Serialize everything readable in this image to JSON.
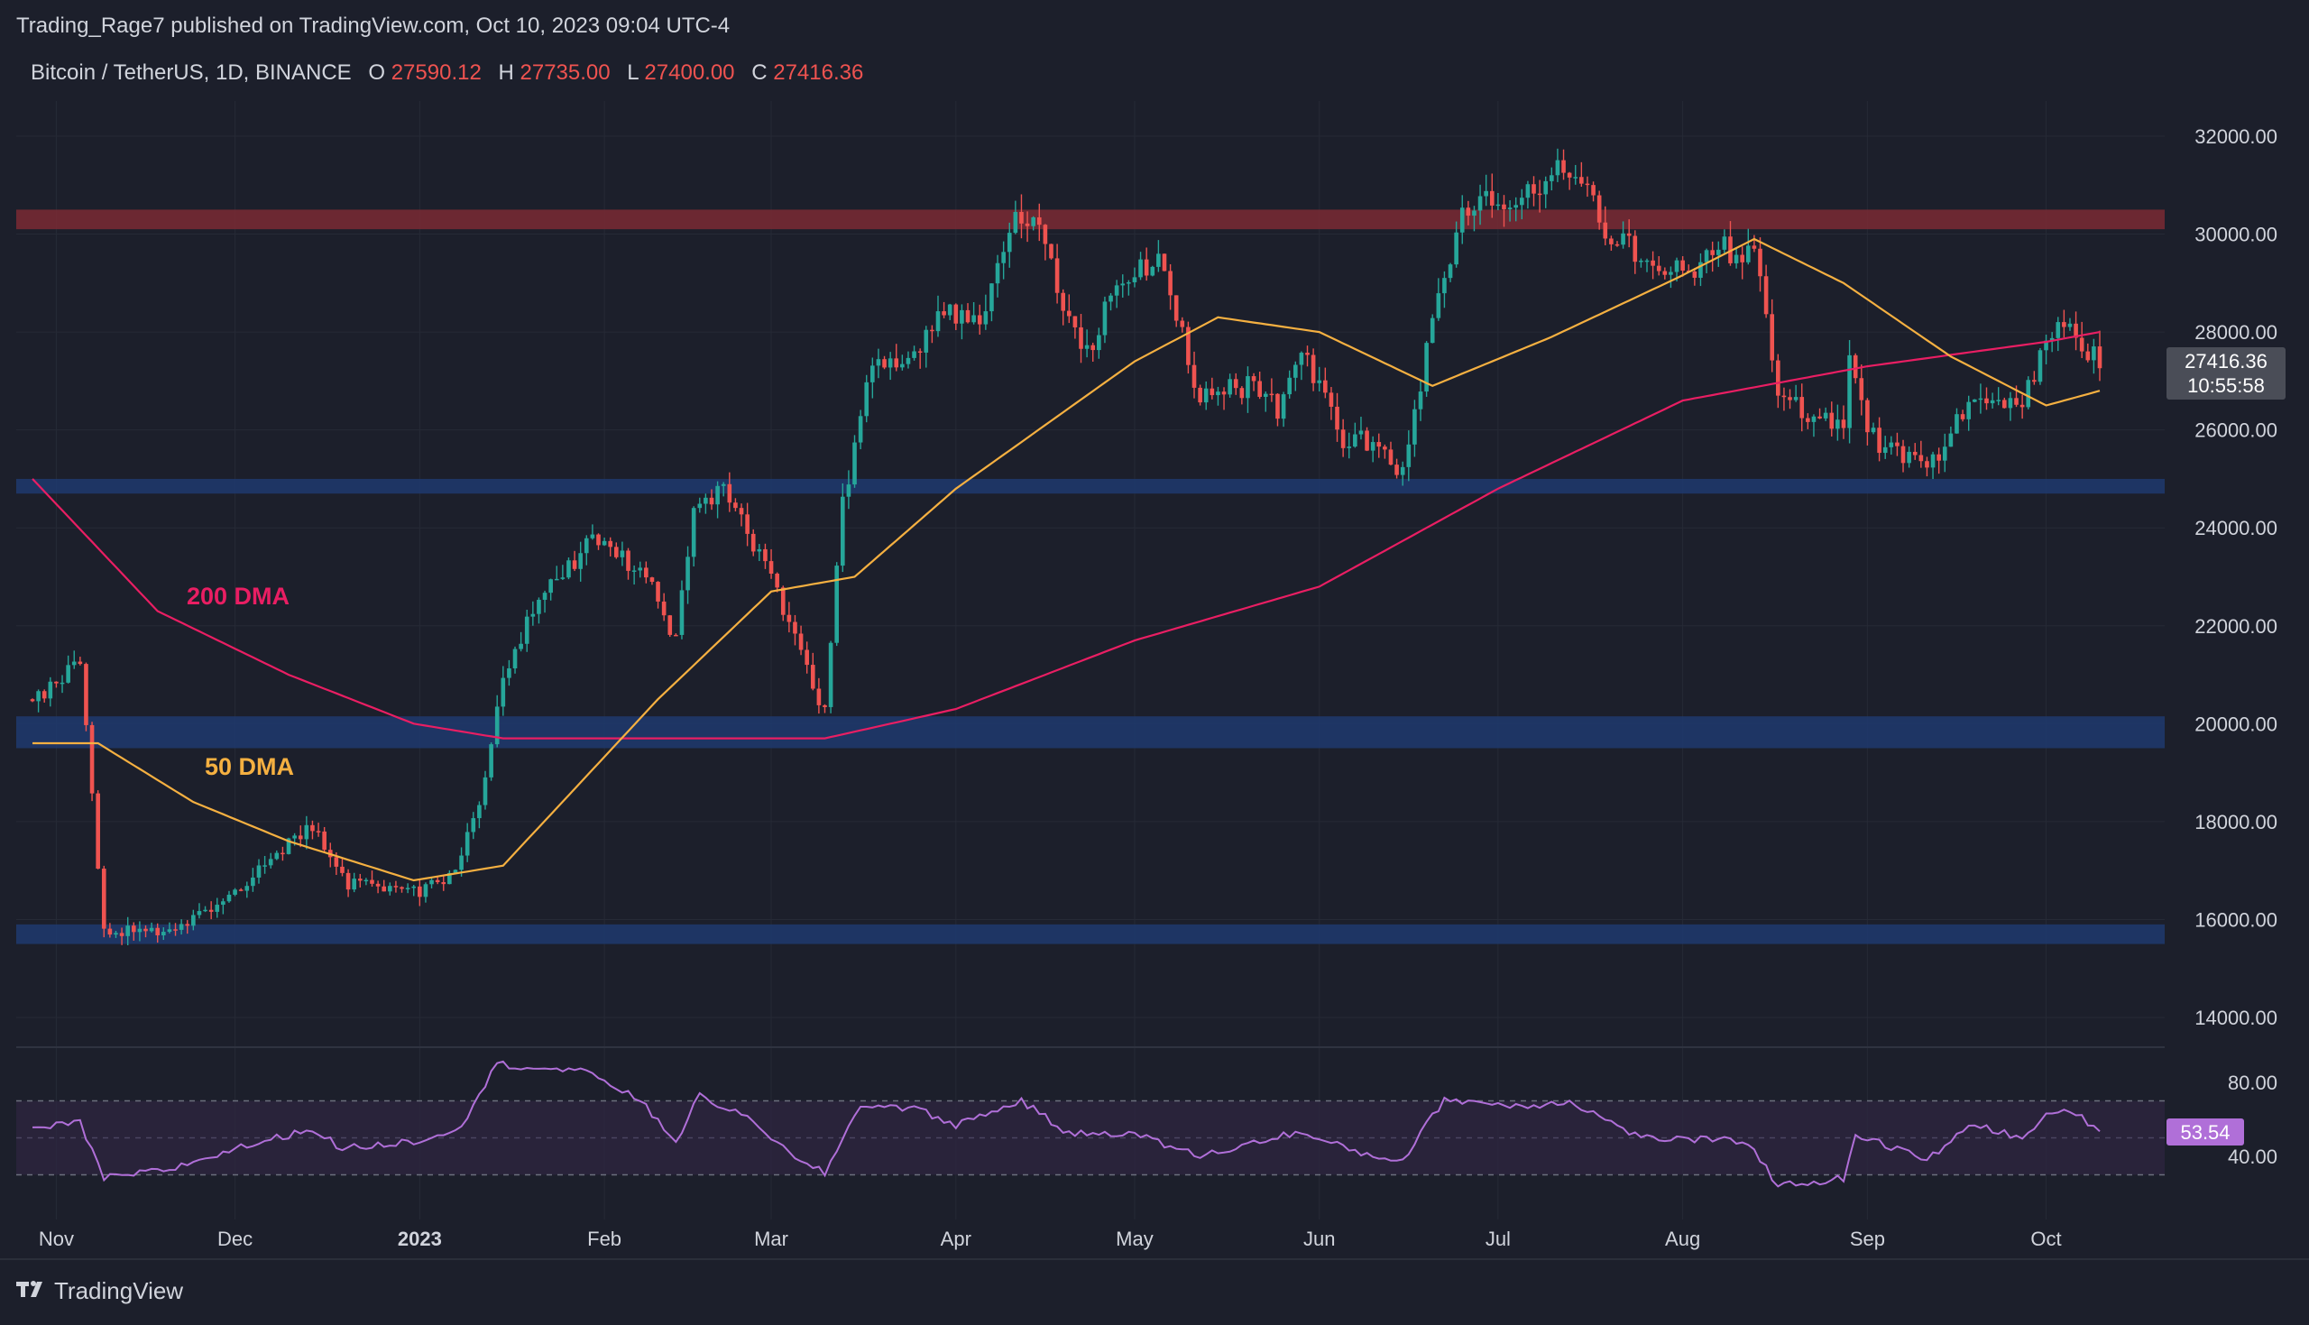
{
  "header": {
    "publisher": "Trading_Rage7 published on TradingView.com, Oct 10, 2023 09:04 UTC-4"
  },
  "symbol": {
    "name": "Bitcoin / TetherUS, 1D, BINANCE",
    "open_label": "O",
    "open_value": "27590.12",
    "high_label": "H",
    "high_value": "27735.00",
    "low_label": "L",
    "low_value": "27400.00",
    "close_label": "C",
    "close_value": "27416.36"
  },
  "price_badge": {
    "value": "27416.36",
    "countdown": "10:55:58"
  },
  "rsi_badge": {
    "value": "53.54"
  },
  "annotations": {
    "ma200_label": "200 DMA",
    "ma50_label": "50 DMA"
  },
  "footer": {
    "logo_text": "TradingView"
  },
  "colors": {
    "background": "#1c1f2b",
    "text": "#d1d4dc",
    "grid": "#262a36",
    "candle_up": "#26a69a",
    "candle_down": "#ef5350",
    "ma200": "#e91e63",
    "ma50": "#f5b041",
    "rsi_line": "#b06fd8",
    "rsi_band": "#2e2540",
    "resistance_zone": "#7a2a34",
    "support_zone": "#1f3a6e",
    "price_badge_bg": "#4a4d57",
    "rsi_badge_bg": "#b06fd8"
  },
  "chart_data": {
    "type": "candlestick",
    "timeframe": "1D",
    "x_labels": [
      "Nov",
      "Dec",
      "2023",
      "Feb",
      "Mar",
      "Apr",
      "May",
      "Jun",
      "Jul",
      "Aug",
      "Sep",
      "Oct"
    ],
    "y_ticks": [
      "32000.00",
      "30000.00",
      "28000.00",
      "26000.00",
      "24000.00",
      "22000.00",
      "20000.00",
      "18000.00",
      "16000.00",
      "14000.00"
    ],
    "ylim": [
      13000,
      33500
    ],
    "zones": [
      {
        "low": 30100,
        "high": 30500,
        "kind": "resistance"
      },
      {
        "low": 24700,
        "high": 25000,
        "kind": "support"
      },
      {
        "low": 19500,
        "high": 20150,
        "kind": "support"
      },
      {
        "low": 15500,
        "high": 15900,
        "kind": "support"
      }
    ],
    "price_path": [
      [
        "2022-10-28",
        20500
      ],
      [
        "2022-11-05",
        21300
      ],
      [
        "2022-11-09",
        15800
      ],
      [
        "2022-11-21",
        15700
      ],
      [
        "2022-12-05",
        17000
      ],
      [
        "2022-12-14",
        17900
      ],
      [
        "2022-12-20",
        16700
      ],
      [
        "2022-12-31",
        16550
      ],
      [
        "2023-01-07",
        16900
      ],
      [
        "2023-01-12",
        18800
      ],
      [
        "2023-01-15",
        20900
      ],
      [
        "2023-01-21",
        22600
      ],
      [
        "2023-01-30",
        23700
      ],
      [
        "2023-02-07",
        23200
      ],
      [
        "2023-02-13",
        21700
      ],
      [
        "2023-02-16",
        24500
      ],
      [
        "2023-02-21",
        24700
      ],
      [
        "2023-02-27",
        23500
      ],
      [
        "2023-03-03",
        22400
      ],
      [
        "2023-03-10",
        20200
      ],
      [
        "2023-03-13",
        24500
      ],
      [
        "2023-03-18",
        27400
      ],
      [
        "2023-03-24",
        27500
      ],
      [
        "2023-03-30",
        28400
      ],
      [
        "2023-04-05",
        28200
      ],
      [
        "2023-04-11",
        30300
      ],
      [
        "2023-04-14",
        30500
      ],
      [
        "2023-04-20",
        28300
      ],
      [
        "2023-04-24",
        27500
      ],
      [
        "2023-04-26",
        28500
      ],
      [
        "2023-04-30",
        29200
      ],
      [
        "2023-05-05",
        29500
      ],
      [
        "2023-05-12",
        26700
      ],
      [
        "2023-05-20",
        26900
      ],
      [
        "2023-05-25",
        26400
      ],
      [
        "2023-05-29",
        27700
      ],
      [
        "2023-06-05",
        25800
      ],
      [
        "2023-06-10",
        25800
      ],
      [
        "2023-06-15",
        25100
      ],
      [
        "2023-06-20",
        28300
      ],
      [
        "2023-06-25",
        30500
      ],
      [
        "2023-07-05",
        30800
      ],
      [
        "2023-07-13",
        31400
      ],
      [
        "2023-07-20",
        29900
      ],
      [
        "2023-08-01",
        29200
      ],
      [
        "2023-08-08",
        29700
      ],
      [
        "2023-08-14",
        29400
      ],
      [
        "2023-08-17",
        26600
      ],
      [
        "2023-08-28",
        26100
      ],
      [
        "2023-08-29",
        27700
      ],
      [
        "2023-09-01",
        25900
      ],
      [
        "2023-09-11",
        25200
      ],
      [
        "2023-09-18",
        26600
      ],
      [
        "2023-09-27",
        26400
      ],
      [
        "2023-10-01",
        28000
      ],
      [
        "2023-10-06",
        27900
      ],
      [
        "2023-10-10",
        27416
      ]
    ],
    "series": [
      {
        "name": "200 DMA",
        "points": [
          [
            "2022-10-28",
            25000
          ],
          [
            "2022-11-18",
            22300
          ],
          [
            "2022-12-10",
            21000
          ],
          [
            "2022-12-31",
            20000
          ],
          [
            "2023-01-15",
            19700
          ],
          [
            "2023-02-10",
            19700
          ],
          [
            "2023-03-10",
            19700
          ],
          [
            "2023-04-01",
            20300
          ],
          [
            "2023-05-01",
            21700
          ],
          [
            "2023-06-01",
            22800
          ],
          [
            "2023-07-01",
            24800
          ],
          [
            "2023-08-01",
            26600
          ],
          [
            "2023-09-01",
            27300
          ],
          [
            "2023-10-01",
            27800
          ],
          [
            "2023-10-10",
            28000
          ]
        ]
      },
      {
        "name": "50 DMA",
        "points": [
          [
            "2022-10-28",
            19600
          ],
          [
            "2022-11-08",
            19600
          ],
          [
            "2022-11-24",
            18400
          ],
          [
            "2022-12-10",
            17600
          ],
          [
            "2022-12-31",
            16800
          ],
          [
            "2023-01-15",
            17100
          ],
          [
            "2023-02-10",
            20500
          ],
          [
            "2023-03-01",
            22700
          ],
          [
            "2023-03-15",
            23000
          ],
          [
            "2023-04-01",
            24800
          ],
          [
            "2023-05-01",
            27400
          ],
          [
            "2023-05-15",
            28300
          ],
          [
            "2023-06-01",
            28000
          ],
          [
            "2023-06-20",
            26900
          ],
          [
            "2023-07-10",
            27900
          ],
          [
            "2023-07-31",
            29100
          ],
          [
            "2023-08-13",
            29900
          ],
          [
            "2023-08-28",
            29000
          ],
          [
            "2023-09-15",
            27500
          ],
          [
            "2023-10-01",
            26500
          ],
          [
            "2023-10-10",
            26800
          ]
        ]
      }
    ],
    "rsi": {
      "y_ticks": [
        "80.00",
        "40.00"
      ],
      "ylim": [
        20,
        95
      ],
      "bands": [
        70,
        50,
        30
      ],
      "points": [
        [
          "2022-10-28",
          55
        ],
        [
          "2022-11-05",
          58
        ],
        [
          "2022-11-09",
          28
        ],
        [
          "2022-11-20",
          33
        ],
        [
          "2022-12-01",
          44
        ],
        [
          "2022-12-14",
          55
        ],
        [
          "2022-12-19",
          44
        ],
        [
          "2023-01-02",
          49
        ],
        [
          "2023-01-08",
          57
        ],
        [
          "2023-01-14",
          90
        ],
        [
          "2023-01-30",
          85
        ],
        [
          "2023-02-07",
          70
        ],
        [
          "2023-02-13",
          48
        ],
        [
          "2023-02-17",
          73
        ],
        [
          "2023-02-27",
          57
        ],
        [
          "2023-03-05",
          38
        ],
        [
          "2023-03-10",
          31
        ],
        [
          "2023-03-16",
          68
        ],
        [
          "2023-03-25",
          66
        ],
        [
          "2023-04-01",
          57
        ],
        [
          "2023-04-12",
          70
        ],
        [
          "2023-04-20",
          52
        ],
        [
          "2023-04-30",
          53
        ],
        [
          "2023-05-12",
          40
        ],
        [
          "2023-05-28",
          53
        ],
        [
          "2023-06-10",
          40
        ],
        [
          "2023-06-15",
          38
        ],
        [
          "2023-06-22",
          71
        ],
        [
          "2023-07-05",
          67
        ],
        [
          "2023-07-13",
          70
        ],
        [
          "2023-07-25",
          50
        ],
        [
          "2023-08-12",
          48
        ],
        [
          "2023-08-17",
          24
        ],
        [
          "2023-08-28",
          28
        ],
        [
          "2023-08-30",
          52
        ],
        [
          "2023-09-11",
          38
        ],
        [
          "2023-09-19",
          58
        ],
        [
          "2023-09-27",
          49
        ],
        [
          "2023-10-02",
          65
        ],
        [
          "2023-10-07",
          61
        ],
        [
          "2023-10-10",
          53.54
        ]
      ]
    }
  }
}
